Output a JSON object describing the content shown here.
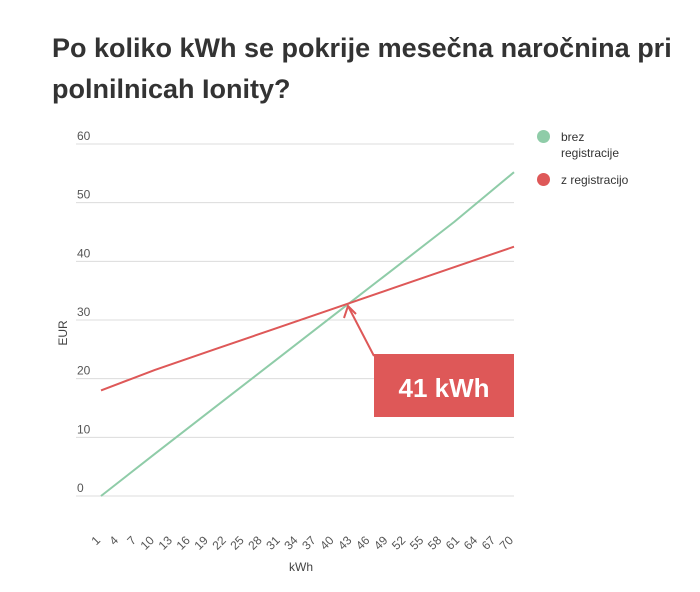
{
  "title": "Po koliko kWh se pokrije mesečna naročnina pri polnilnicah Ionity?",
  "annotation": "41 kWh",
  "chart_data": {
    "type": "line",
    "xlabel": "kWh",
    "ylabel": "EUR",
    "xlim": [
      1,
      70
    ],
    "ylim": [
      0,
      60
    ],
    "yticks": [
      0,
      10,
      20,
      30,
      40,
      50,
      60
    ],
    "xticks": [
      1,
      4,
      7,
      10,
      13,
      16,
      19,
      22,
      25,
      28,
      31,
      34,
      37,
      40,
      43,
      46,
      49,
      52,
      55,
      58,
      61,
      64,
      67,
      70
    ],
    "grid": true,
    "legend_position": "right",
    "series": [
      {
        "name": "brez registracije",
        "color": "#8fcca8",
        "x": [
          1,
          10,
          20,
          30,
          40,
          50,
          60,
          70
        ],
        "y": [
          0.0,
          7.2,
          15.1,
          23.0,
          30.9,
          38.8,
          46.7,
          55.2
        ]
      },
      {
        "name": "z registracijo",
        "color": "#de5858",
        "x": [
          1,
          10,
          20,
          30,
          40,
          50,
          60,
          70
        ],
        "y": [
          18.0,
          21.5,
          25.0,
          28.5,
          32.0,
          35.5,
          39.0,
          42.5
        ]
      }
    ]
  }
}
